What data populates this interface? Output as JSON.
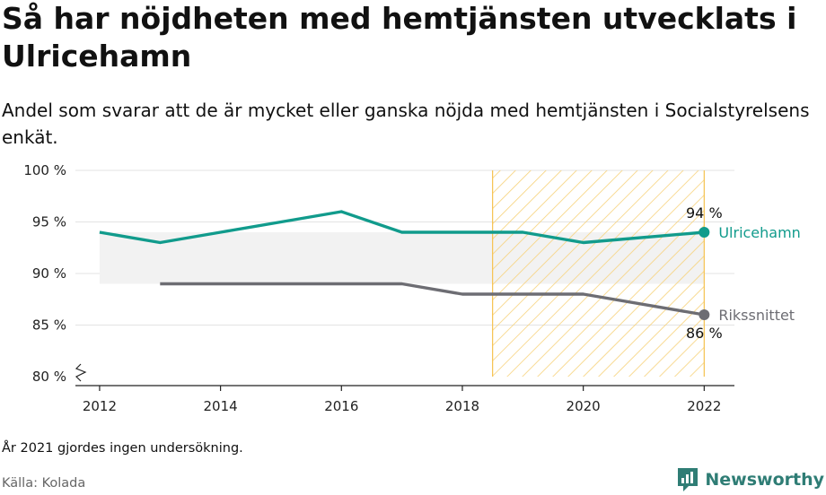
{
  "title": "Så har nöjdheten med hemtjänsten utvecklats i Ulricehamn",
  "subtitle": "Andel som svarar att de är mycket eller ganska nöjda med hemtjänsten i Socialstyrelsens enkät.",
  "note": "År 2021 gjordes ingen undersökning.",
  "source": "Källa: Kolada",
  "brand": {
    "name": "Newsworthy",
    "icon": "newsworthy-logo-icon"
  },
  "colors": {
    "ulricehamn": "#119b8c",
    "riket": "#6d6d73",
    "highlight": "#f6c24f",
    "band": "#f2f2f2"
  },
  "chart_data": {
    "type": "line",
    "xlabel": "",
    "ylabel": "",
    "xlim": [
      2011.6,
      2022.5
    ],
    "ylim": [
      80,
      100
    ],
    "x_ticks": [
      "2012",
      "2014",
      "2016",
      "2018",
      "2020",
      "2022"
    ],
    "y_ticks": [
      "100 %",
      "95 %",
      "90 %",
      "85 %",
      "80 %"
    ],
    "grid": true,
    "highlight_region": [
      2018.5,
      2022
    ],
    "series": [
      {
        "name": "Ulricehamn",
        "x": [
          2012,
          2013,
          2014,
          2015,
          2016,
          2017,
          2018,
          2019,
          2020,
          2022
        ],
        "values": [
          94,
          93,
          94,
          95,
          96,
          94,
          94,
          94,
          93,
          94
        ],
        "end_label": "94 %"
      },
      {
        "name": "Rikssnittet",
        "x": [
          2013,
          2014,
          2015,
          2016,
          2017,
          2018,
          2019,
          2020,
          2022
        ],
        "values": [
          89,
          89,
          89,
          89,
          89,
          88,
          88,
          88,
          86
        ],
        "end_label": "86 %"
      }
    ]
  }
}
